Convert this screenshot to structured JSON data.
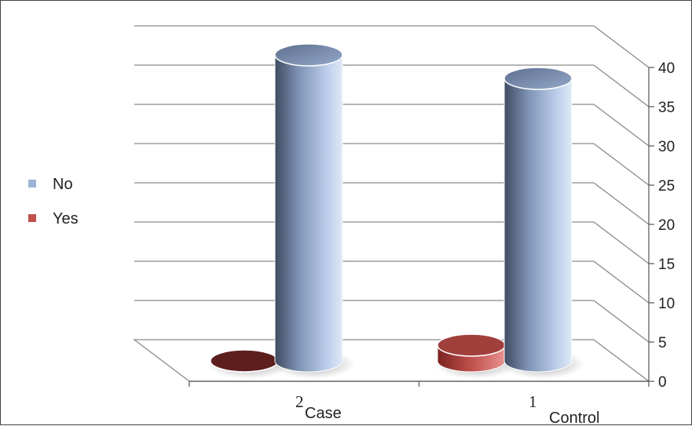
{
  "chart_data": {
    "type": "bar",
    "style": "3d-cylinder",
    "categories": [
      {
        "number": "2",
        "label": "Case"
      },
      {
        "number": "1",
        "label": "Control"
      }
    ],
    "series": [
      {
        "name": "No",
        "color": "#9db3d6",
        "values": [
          39,
          36
        ]
      },
      {
        "name": "Yes",
        "color": "#c0504d",
        "values": [
          0,
          2
        ]
      }
    ],
    "ylim": [
      0,
      40
    ],
    "yticks": [
      0,
      5,
      10,
      15,
      20,
      25,
      30,
      35,
      40
    ],
    "grid": true,
    "legend": "left",
    "title": "",
    "xlabel": "",
    "ylabel": ""
  }
}
